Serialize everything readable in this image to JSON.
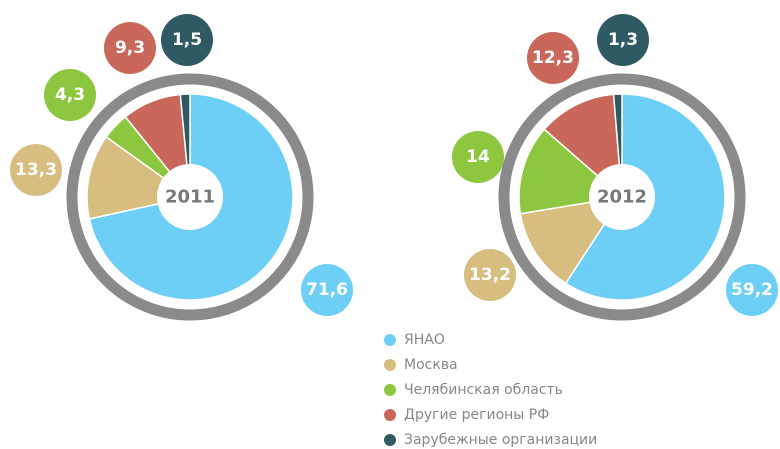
{
  "chart_data": {
    "type": "pie",
    "categories": [
      "ЯНАО",
      "Москва",
      "Челябинская область",
      "Другие регионы РФ",
      "Зарубежные организации"
    ],
    "colors": [
      "#6dcff6",
      "#d7bd7f",
      "#8dc63f",
      "#c8675a",
      "#2f5963"
    ],
    "series": [
      {
        "name": "2011",
        "values": [
          71.6,
          13.3,
          4.3,
          9.3,
          1.5
        ],
        "value_labels": [
          "71,6",
          "13,3",
          "4,3",
          "9,3",
          "1,5"
        ]
      },
      {
        "name": "2012",
        "values": [
          59.2,
          13.2,
          14,
          12.3,
          1.3
        ],
        "value_labels": [
          "59,2",
          "13,2",
          "14",
          "12,3",
          "1,3"
        ]
      }
    ]
  }
}
